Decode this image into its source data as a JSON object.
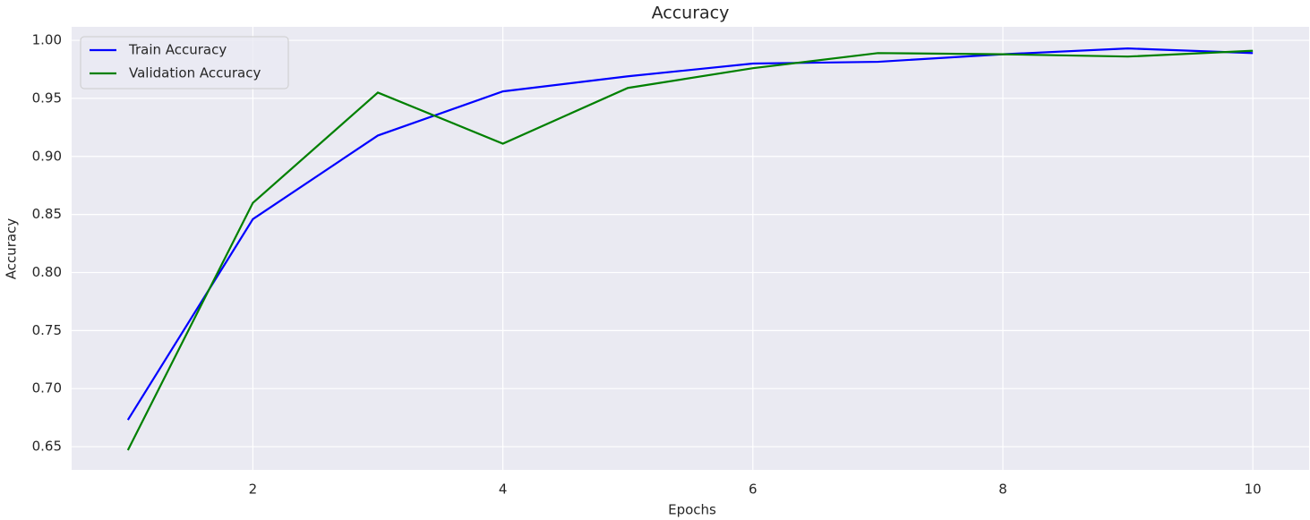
{
  "chart_data": {
    "type": "line",
    "title": "Accuracy",
    "x_label": "Epochs",
    "y_label": "Accuracy",
    "x": [
      1,
      2,
      3,
      4,
      5,
      6,
      7,
      8,
      9,
      10
    ],
    "series": [
      {
        "name": "Train Accuracy",
        "color": "#0000ff",
        "values": [
          0.673,
          0.846,
          0.918,
          0.956,
          0.969,
          0.98,
          0.9815,
          0.988,
          0.993,
          0.989
        ]
      },
      {
        "name": "Validation Accuracy",
        "color": "#008000",
        "values": [
          0.647,
          0.86,
          0.955,
          0.911,
          0.959,
          0.976,
          0.989,
          0.988,
          0.986,
          0.991
        ]
      }
    ],
    "xlim": [
      0.55,
      10.45
    ],
    "ylim": [
      0.63,
      1.0116
    ],
    "xticks": [
      2,
      4,
      6,
      8,
      10
    ],
    "yticks": [
      0.65,
      {
        "value": 0.7,
        "label": "0.70"
      },
      0.75,
      {
        "value": 0.8,
        "label": "0.80"
      },
      0.85,
      {
        "value": 0.9,
        "label": "0.90"
      },
      0.95,
      {
        "value": 1.0,
        "label": "1.00"
      }
    ],
    "grid": true,
    "legend": "upper left"
  }
}
